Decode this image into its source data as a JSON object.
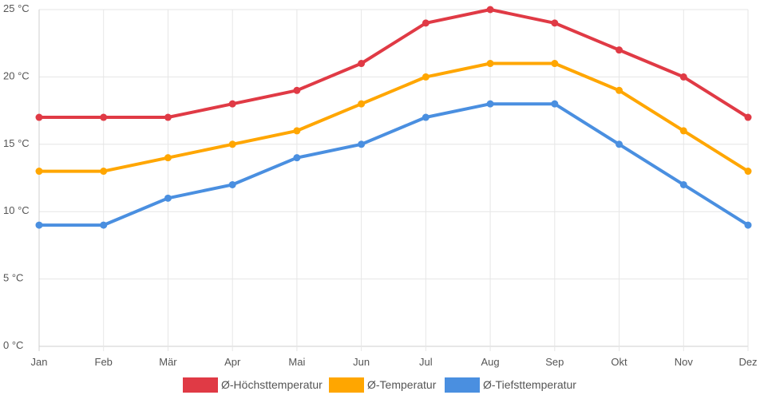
{
  "chart_data": {
    "type": "line",
    "title": "",
    "xlabel": "",
    "ylabel": "",
    "categories": [
      "Jan",
      "Feb",
      "Mär",
      "Apr",
      "Mai",
      "Jun",
      "Jul",
      "Aug",
      "Sep",
      "Okt",
      "Nov",
      "Dez"
    ],
    "ylim": [
      0,
      25
    ],
    "y_ticks": [
      0,
      5,
      10,
      15,
      20,
      25
    ],
    "y_tick_labels": [
      "0 °C",
      "5 °C",
      "10 °C",
      "15 °C",
      "20 °C",
      "25 °C"
    ],
    "grid": true,
    "legend_position": "bottom-center",
    "series": [
      {
        "name": "Ø-Höchsttemperatur",
        "color": "#e03a45",
        "values": [
          17,
          17,
          17,
          18,
          19,
          21,
          24,
          25,
          24,
          22,
          20,
          17
        ]
      },
      {
        "name": "Ø-Temperatur",
        "color": "#ffa600",
        "values": [
          13,
          13,
          14,
          15,
          16,
          18,
          20,
          21,
          21,
          19,
          16,
          13
        ]
      },
      {
        "name": "Ø-Tiefsttemperatur",
        "color": "#4a8fe0",
        "values": [
          9,
          9,
          11,
          12,
          14,
          15,
          17,
          18,
          18,
          15,
          12,
          9
        ]
      }
    ]
  }
}
